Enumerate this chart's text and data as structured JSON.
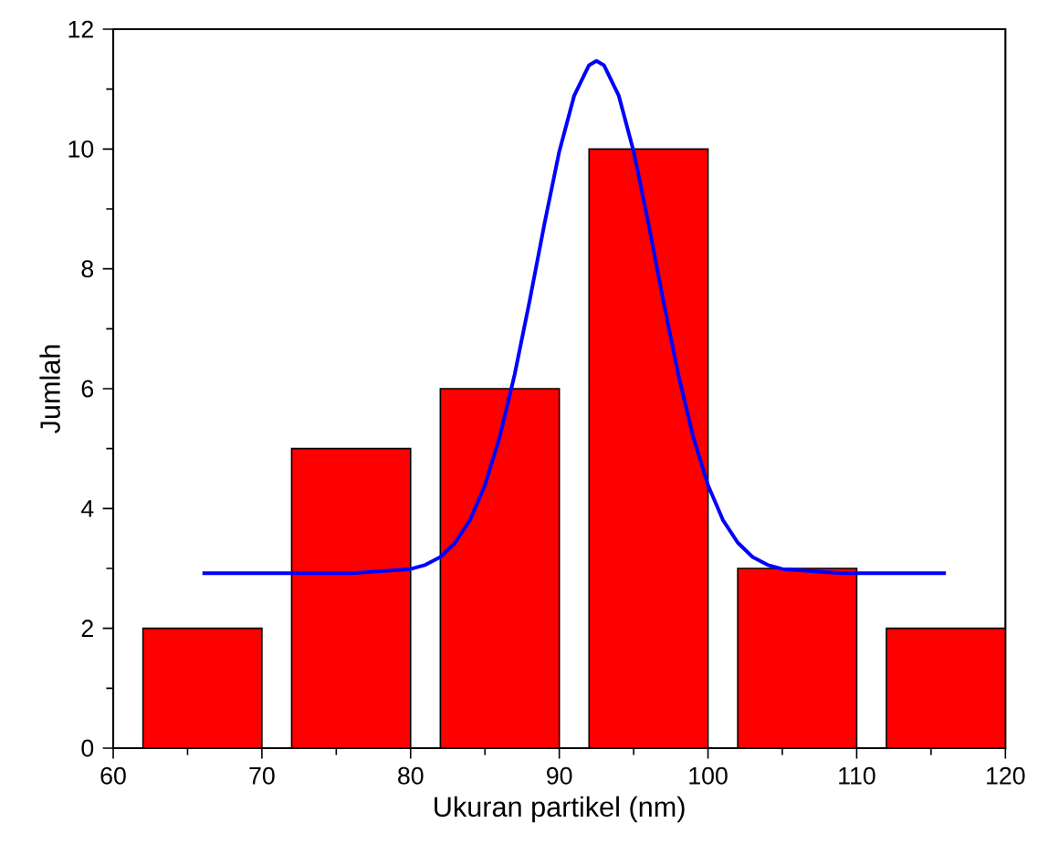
{
  "chart_data": {
    "type": "bar",
    "xlabel": "Ukuran partikel (nm)",
    "ylabel": "Jumlah",
    "series": [
      {
        "color": "#ff0000",
        "x": [
          66,
          76,
          86,
          96,
          106,
          116
        ],
        "values": [
          2,
          5,
          6,
          10,
          3,
          2
        ]
      },
      {
        "type": "line",
        "color": "#0000ff",
        "x": [
          66,
          76,
          80,
          81,
          82,
          83,
          84,
          85,
          86,
          87,
          88,
          89,
          90,
          91,
          92,
          92.5,
          93,
          94,
          95,
          96,
          97,
          98,
          99,
          100,
          101,
          102,
          103,
          104,
          105,
          109,
          116
        ],
        "values": [
          2.92,
          2.92,
          2.99,
          3.06,
          3.19,
          3.43,
          3.81,
          4.39,
          5.2,
          6.24,
          7.46,
          8.75,
          9.96,
          10.89,
          11.4,
          11.47,
          11.4,
          10.89,
          9.96,
          8.75,
          7.46,
          6.24,
          5.2,
          4.39,
          3.81,
          3.43,
          3.19,
          3.06,
          2.99,
          2.92,
          2.92
        ]
      }
    ],
    "xlim": [
      60,
      120
    ],
    "xticks": [
      60,
      70,
      80,
      90,
      100,
      110,
      120
    ],
    "ylim": [
      0,
      12
    ],
    "yticks": [
      0,
      2,
      4,
      6,
      8,
      10,
      12
    ],
    "grid": false,
    "marker": "none",
    "line_style": "solid"
  }
}
